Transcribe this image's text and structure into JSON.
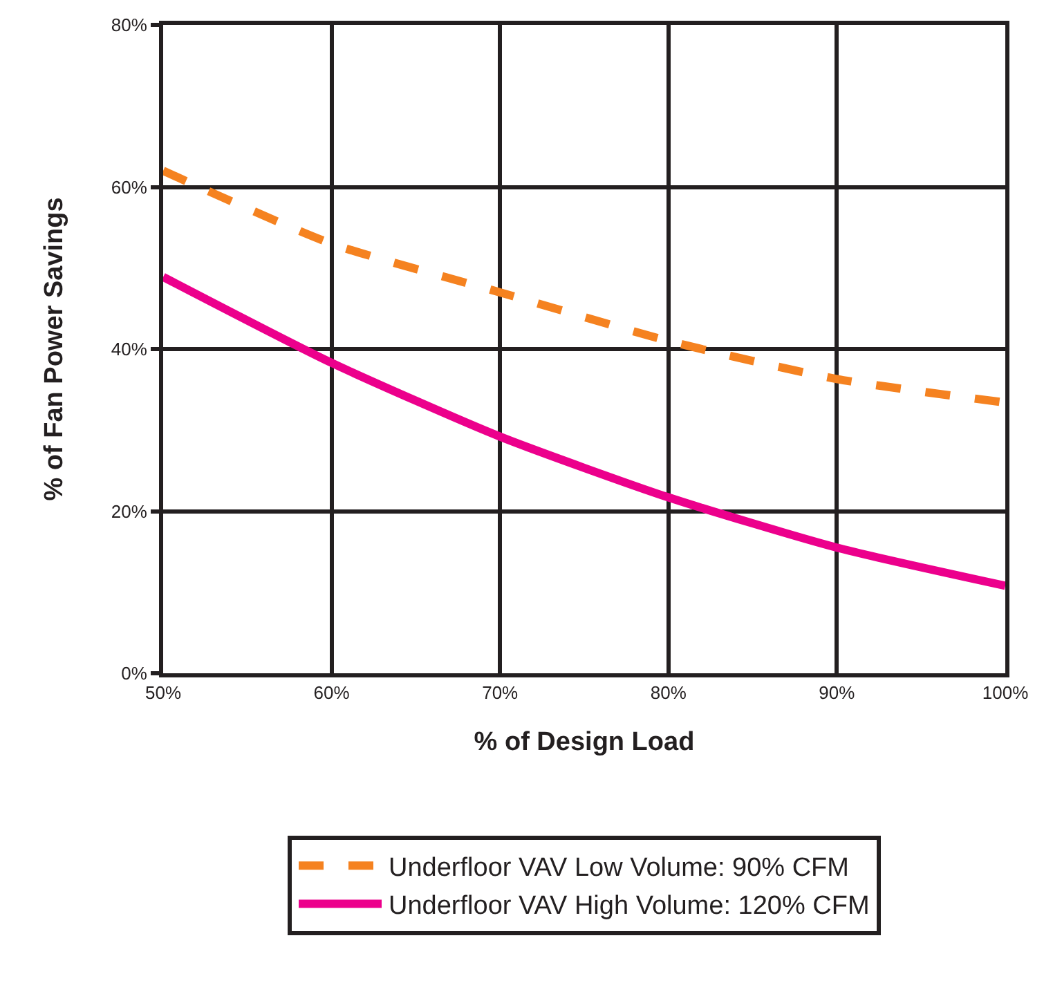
{
  "chart_data": {
    "type": "line",
    "xlabel": "% of Design Load",
    "ylabel": "% of Fan Power Savings",
    "x": [
      50,
      60,
      70,
      80,
      90,
      100
    ],
    "series": [
      {
        "name": "Underfloor VAV Low Volume: 90% CFM",
        "color": "#f58220",
        "line_style": "dashed",
        "values": [
          62,
          53,
          47,
          41,
          36.3,
          33.4
        ]
      },
      {
        "name": "Underfloor VAV High Volume: 120% CFM",
        "color": "#ec008c",
        "line_style": "solid",
        "values": [
          48.9,
          38.3,
          29.2,
          21.7,
          15.5,
          10.8
        ]
      }
    ],
    "xlim": [
      50,
      100
    ],
    "xticks": [
      {
        "value": 50,
        "label": "50%"
      },
      {
        "value": 60,
        "label": "60%"
      },
      {
        "value": 70,
        "label": "70%"
      },
      {
        "value": 80,
        "label": "80%"
      },
      {
        "value": 90,
        "label": "90%"
      },
      {
        "value": 100,
        "label": "100%"
      }
    ],
    "ylim": [
      0,
      80
    ],
    "yticks": [
      {
        "value": 0,
        "label": "0%"
      },
      {
        "value": 20,
        "label": "20%"
      },
      {
        "value": 40,
        "label": "40%"
      },
      {
        "value": 60,
        "label": "60%"
      },
      {
        "value": 80,
        "label": "80%"
      }
    ],
    "grid": true,
    "legend": "bottom",
    "marker": "none"
  }
}
